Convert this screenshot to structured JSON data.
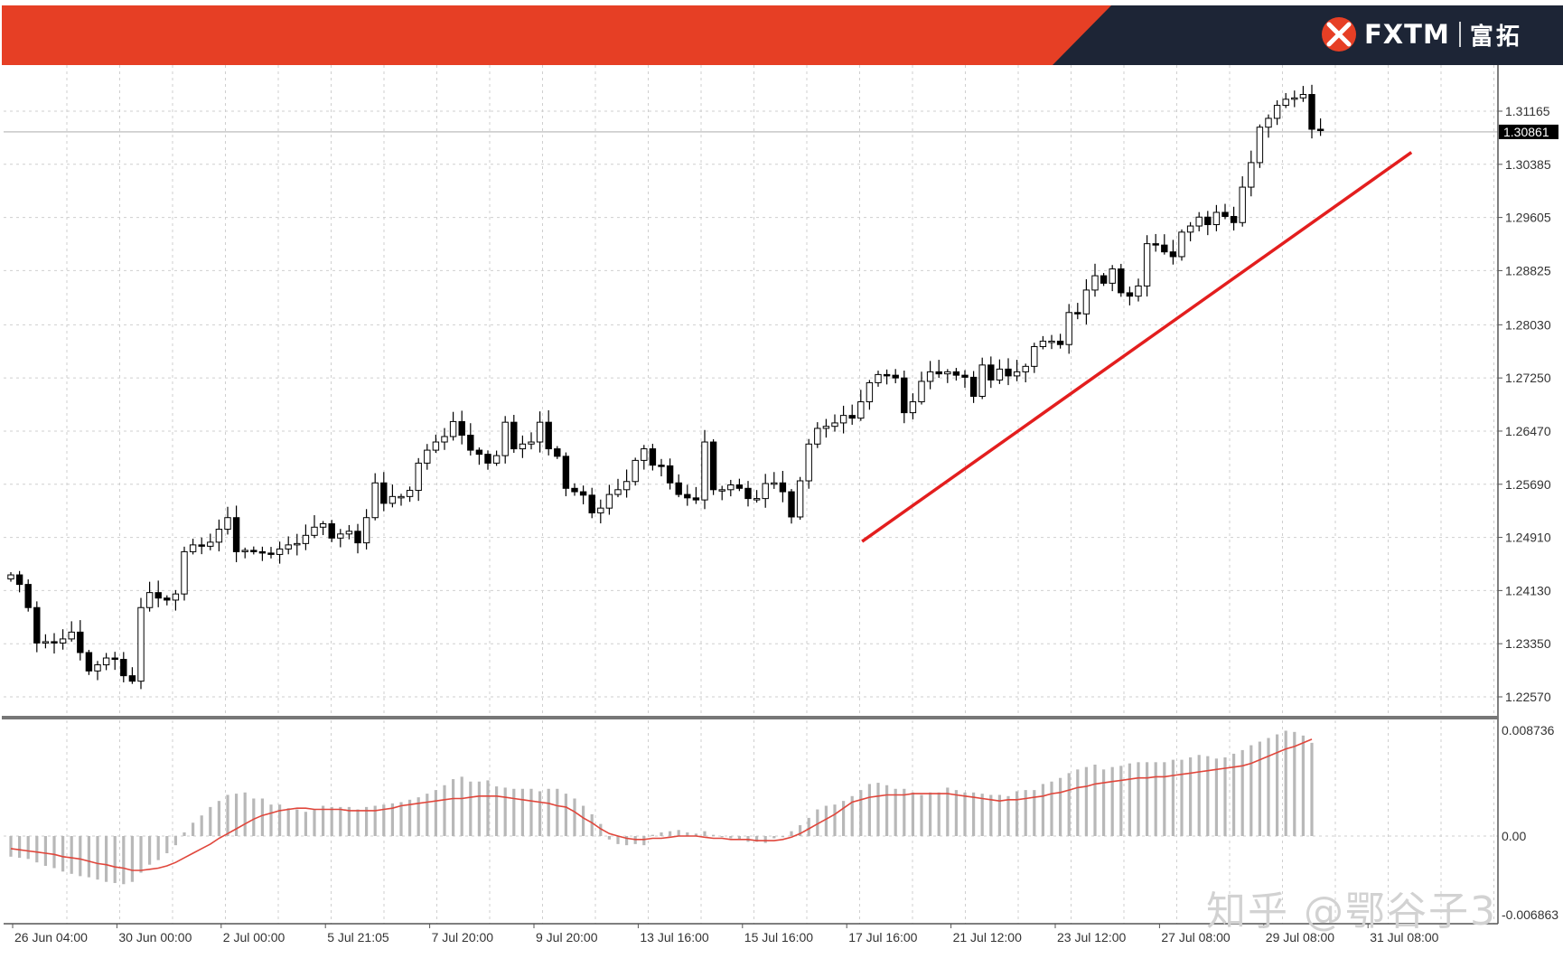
{
  "header": {
    "brand_name": "FXTM",
    "brand_cn": "富拓",
    "colors": {
      "red": "#e63f25",
      "navy": "#1d2536"
    }
  },
  "watermark": "知乎 @鄂谷子3",
  "chart_data": [
    {
      "type": "candlestick",
      "x_labels": [
        "26 Jun 04:00",
        "30 Jun 00:00",
        "2 Jul 00:00",
        "5 Jul 21:05",
        "7 Jul 20:00",
        "9 Jul 20:00",
        "13 Jul 16:00",
        "15 Jul 16:00",
        "17 Jul 16:00",
        "21 Jul 12:00",
        "23 Jul 12:00",
        "27 Jul 08:00",
        "29 Jul 08:00",
        "31 Jul 08:00"
      ],
      "y_ticks": [
        "1.31165",
        "1.30385",
        "1.29605",
        "1.28825",
        "1.28030",
        "1.27250",
        "1.26470",
        "1.25690",
        "1.24910",
        "1.24130",
        "1.23350",
        "1.22570"
      ],
      "current_price": "1.30861",
      "grid": true,
      "close_series": [
        1.2436,
        1.2422,
        1.2388,
        1.2336,
        1.2338,
        1.2336,
        1.2342,
        1.2352,
        1.2322,
        1.2295,
        1.2304,
        1.2314,
        1.2312,
        1.2288,
        1.228,
        1.2388,
        1.241,
        1.2402,
        1.2399,
        1.2408,
        1.247,
        1.248,
        1.2478,
        1.2484,
        1.2503,
        1.252,
        1.247,
        1.2472,
        1.247,
        1.2468,
        1.2466,
        1.2474,
        1.248,
        1.2482,
        1.2494,
        1.2506,
        1.2511,
        1.249,
        1.2496,
        1.25,
        1.2483,
        1.252,
        1.2571,
        1.2541,
        1.2551,
        1.2551,
        1.256,
        1.26,
        1.2619,
        1.2631,
        1.2639,
        1.2661,
        1.2641,
        1.2619,
        1.2613,
        1.26,
        1.2611,
        1.266,
        1.2621,
        1.2628,
        1.2631,
        1.266,
        1.2621,
        1.261,
        1.2563,
        1.2558,
        1.2553,
        1.2527,
        1.2534,
        1.2554,
        1.2561,
        1.2573,
        1.2604,
        1.2621,
        1.2597,
        1.2596,
        1.2571,
        1.2554,
        1.2549,
        1.2546,
        1.2631,
        1.2561,
        1.2561,
        1.2568,
        1.2563,
        1.2548,
        1.2548,
        1.257,
        1.2571,
        1.2558,
        1.2521,
        1.2574,
        1.2628,
        1.2651,
        1.2654,
        1.2659,
        1.267,
        1.2666,
        1.269,
        1.2718,
        1.273,
        1.2729,
        1.2725,
        1.2674,
        1.269,
        1.272,
        1.2734,
        1.2731,
        1.2734,
        1.2729,
        1.2726,
        1.2698,
        1.2744,
        1.2722,
        1.2738,
        1.2728,
        1.2734,
        1.2742,
        1.2771,
        1.2779,
        1.2779,
        1.2774,
        1.2821,
        1.2819,
        1.2854,
        1.2875,
        1.2864,
        1.2885,
        1.285,
        1.2845,
        1.286,
        1.2922,
        1.292,
        1.291,
        1.2903,
        1.2939,
        1.2948,
        1.2961,
        1.295,
        1.2968,
        1.2962,
        1.2953,
        1.3005,
        1.3041,
        1.3093,
        1.3106,
        1.3125,
        1.3134,
        1.3136,
        1.3141,
        1.309,
        1.3088
      ],
      "trendline": {
        "color": "#e31e1e",
        "from": {
          "x_label": "17 Jul 16:00",
          "y": 1.2485
        },
        "to": {
          "x_label": "31 Jul 08:00",
          "y": 1.3056
        }
      }
    },
    {
      "type": "bar+line",
      "indicator": "MACD",
      "y_ticks": [
        "0.008736",
        "0.00",
        "-0.006863"
      ],
      "histogram_color": "#b8b8b8",
      "signal_color": "#e0463b",
      "histogram": [
        -0.0018,
        -0.0019,
        -0.002,
        -0.0023,
        -0.0026,
        -0.0028,
        -0.0031,
        -0.0033,
        -0.0035,
        -0.0036,
        -0.0038,
        -0.004,
        -0.0041,
        -0.0042,
        -0.004,
        -0.0032,
        -0.0025,
        -0.0021,
        -0.0015,
        -0.0008,
        0.0003,
        0.0011,
        0.0017,
        0.0024,
        0.0029,
        0.0034,
        0.0035,
        0.0036,
        0.0031,
        0.0031,
        0.0026,
        0.0026,
        0.0023,
        0.0022,
        0.002,
        0.0022,
        0.0025,
        0.0024,
        0.0024,
        0.0024,
        0.0022,
        0.0024,
        0.0025,
        0.0026,
        0.0027,
        0.0028,
        0.003,
        0.0032,
        0.0035,
        0.0038,
        0.0042,
        0.0047,
        0.0049,
        0.0045,
        0.0045,
        0.0046,
        0.0041,
        0.004,
        0.0039,
        0.0039,
        0.0039,
        0.0037,
        0.0039,
        0.0039,
        0.0035,
        0.0031,
        0.0025,
        0.0018,
        0.001,
        -0.0003,
        -0.0007,
        -0.0008,
        -0.0007,
        -0.0008,
        0.0001,
        0.0003,
        0.0004,
        0.0005,
        0.0003,
        0.0002,
        0.0004,
        0.0001,
        -0.0001,
        -0.0002,
        -0.0003,
        -0.0005,
        -0.0005,
        -0.0006,
        -0.0002,
        -0.0001,
        0.0004,
        0.0009,
        0.0015,
        0.0022,
        0.0025,
        0.0026,
        0.0029,
        0.0033,
        0.0038,
        0.0043,
        0.0044,
        0.0042,
        0.0039,
        0.0039,
        0.0036,
        0.0034,
        0.0036,
        0.0036,
        0.004,
        0.0038,
        0.0036,
        0.0036,
        0.0035,
        0.0034,
        0.0034,
        0.0033,
        0.0037,
        0.0038,
        0.0038,
        0.0043,
        0.0045,
        0.0048,
        0.0052,
        0.0055,
        0.0057,
        0.0059,
        0.0055,
        0.0057,
        0.0058,
        0.006,
        0.0061,
        0.0061,
        0.0061,
        0.0061,
        0.0063,
        0.0063,
        0.0065,
        0.0067,
        0.0066,
        0.0064,
        0.0065,
        0.0068,
        0.0071,
        0.0075,
        0.0078,
        0.0081,
        0.0084,
        0.0087,
        0.0086,
        0.0083,
        0.0077
      ],
      "signal": [
        -0.0011,
        -0.0012,
        -0.0013,
        -0.0014,
        -0.0015,
        -0.0016,
        -0.0018,
        -0.0019,
        -0.002,
        -0.0022,
        -0.0024,
        -0.0025,
        -0.0027,
        -0.0028,
        -0.003,
        -0.003,
        -0.0029,
        -0.0028,
        -0.0026,
        -0.0023,
        -0.0019,
        -0.0015,
        -0.0011,
        -0.0007,
        -0.0002,
        0.0002,
        0.0006,
        0.001,
        0.0014,
        0.0017,
        0.0019,
        0.0021,
        0.0022,
        0.0023,
        0.0023,
        0.0022,
        0.0022,
        0.0022,
        0.0022,
        0.0021,
        0.0021,
        0.0021,
        0.0021,
        0.0022,
        0.0023,
        0.0025,
        0.0026,
        0.0027,
        0.0028,
        0.0029,
        0.003,
        0.0031,
        0.0031,
        0.0032,
        0.0033,
        0.0033,
        0.0033,
        0.0032,
        0.0031,
        0.003,
        0.0029,
        0.0028,
        0.0027,
        0.0025,
        0.0024,
        0.002,
        0.0015,
        0.0011,
        0.0006,
        0.0002,
        0.0,
        -0.0002,
        -0.0003,
        -0.0003,
        -0.0002,
        -0.0002,
        -0.0001,
        0.0,
        0.0,
        0.0,
        -0.0001,
        -0.0002,
        -0.0002,
        -0.0003,
        -0.0003,
        -0.0003,
        -0.0004,
        -0.0004,
        -0.0004,
        -0.0003,
        -0.0001,
        0.0002,
        0.0006,
        0.001,
        0.0014,
        0.0018,
        0.0023,
        0.0028,
        0.003,
        0.0032,
        0.0033,
        0.0034,
        0.0034,
        0.0034,
        0.0035,
        0.0035,
        0.0035,
        0.0035,
        0.0035,
        0.0034,
        0.0033,
        0.0032,
        0.0031,
        0.003,
        0.0029,
        0.003,
        0.003,
        0.0031,
        0.0032,
        0.0033,
        0.0035,
        0.0036,
        0.0038,
        0.004,
        0.0041,
        0.0043,
        0.0044,
        0.0045,
        0.0046,
        0.0047,
        0.0048,
        0.0048,
        0.0049,
        0.0049,
        0.005,
        0.0051,
        0.0052,
        0.0053,
        0.0054,
        0.0055,
        0.0056,
        0.0057,
        0.0058,
        0.006,
        0.0063,
        0.0066,
        0.0069,
        0.0072,
        0.0074,
        0.0077,
        0.008
      ]
    }
  ]
}
